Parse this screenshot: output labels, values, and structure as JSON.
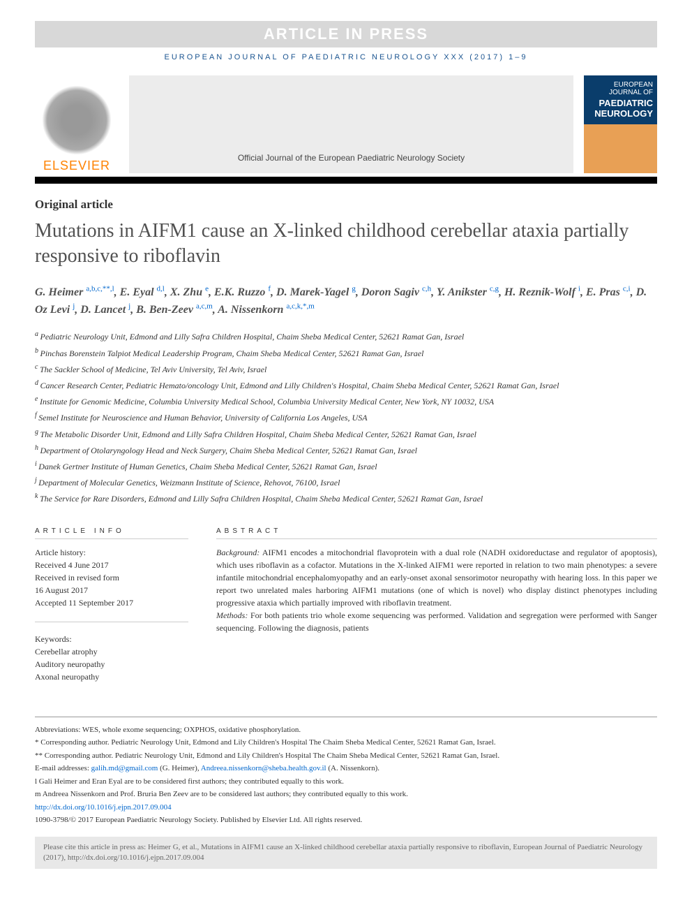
{
  "banner": "ARTICLE IN PRESS",
  "journal_header": "EUROPEAN JOURNAL OF PAEDIATRIC NEUROLOGY XXX (2017) 1–9",
  "publisher": "ELSEVIER",
  "society": "Official Journal of the European Paediatric Neurology Society",
  "cover_sub": "EUROPEAN JOURNAL OF",
  "cover_title1": "PAEDIATRIC",
  "cover_title2": "NEUROLOGY",
  "article_type": "Original article",
  "title": "Mutations in AIFM1 cause an X-linked childhood cerebellar ataxia partially responsive to riboflavin",
  "authors": [
    {
      "name": "G. Heimer",
      "affs": "a,b,c,**,l"
    },
    {
      "name": "E. Eyal",
      "affs": "d,l"
    },
    {
      "name": "X. Zhu",
      "affs": "e"
    },
    {
      "name": "E.K. Ruzzo",
      "affs": "f"
    },
    {
      "name": "D. Marek-Yagel",
      "affs": "g"
    },
    {
      "name": "Doron Sagiv",
      "affs": "c,h"
    },
    {
      "name": "Y. Anikster",
      "affs": "c,g"
    },
    {
      "name": "H. Reznik-Wolf",
      "affs": "i"
    },
    {
      "name": "E. Pras",
      "affs": "c,i"
    },
    {
      "name": "D. Oz Levi",
      "affs": "j"
    },
    {
      "name": "D. Lancet",
      "affs": "j"
    },
    {
      "name": "B. Ben-Zeev",
      "affs": "a,c,m"
    },
    {
      "name": "A. Nissenkorn",
      "affs": "a,c,k,*,m"
    }
  ],
  "affiliations": [
    {
      "sup": "a",
      "text": "Pediatric Neurology Unit, Edmond and Lilly Safra Children Hospital, Chaim Sheba Medical Center, 52621 Ramat Gan, Israel"
    },
    {
      "sup": "b",
      "text": "Pinchas Borenstein Talpiot Medical Leadership Program, Chaim Sheba Medical Center, 52621 Ramat Gan, Israel"
    },
    {
      "sup": "c",
      "text": "The Sackler School of Medicine, Tel Aviv University, Tel Aviv, Israel"
    },
    {
      "sup": "d",
      "text": "Cancer Research Center, Pediatric Hemato/oncology Unit, Edmond and Lilly Children's Hospital, Chaim Sheba Medical Center, 52621 Ramat Gan, Israel"
    },
    {
      "sup": "e",
      "text": "Institute for Genomic Medicine, Columbia University Medical School, Columbia University Medical Center, New York, NY 10032, USA"
    },
    {
      "sup": "f",
      "text": "Semel Institute for Neuroscience and Human Behavior, University of California Los Angeles, USA"
    },
    {
      "sup": "g",
      "text": "The Metabolic Disorder Unit, Edmond and Lilly Safra Children Hospital, Chaim Sheba Medical Center, 52621 Ramat Gan, Israel"
    },
    {
      "sup": "h",
      "text": "Department of Otolaryngology Head and Neck Surgery, Chaim Sheba Medical Center, 52621 Ramat Gan, Israel"
    },
    {
      "sup": "i",
      "text": "Danek Gertner Institute of Human Genetics, Chaim Sheba Medical Center, 52621 Ramat Gan, Israel"
    },
    {
      "sup": "j",
      "text": "Department of Molecular Genetics, Weizmann Institute of Science, Rehovot, 76100, Israel"
    },
    {
      "sup": "k",
      "text": "The Service for Rare Disorders, Edmond and Lilly Safra Children Hospital, Chaim Sheba Medical Center, 52621 Ramat Gan, Israel"
    }
  ],
  "info_heading": "ARTICLE INFO",
  "history_label": "Article history:",
  "history": [
    "Received 4 June 2017",
    "Received in revised form",
    "16 August 2017",
    "Accepted 11 September 2017"
  ],
  "keywords_label": "Keywords:",
  "keywords": [
    "Cerebellar atrophy",
    "Auditory neuropathy",
    "Axonal neuropathy"
  ],
  "abstract_heading": "ABSTRACT",
  "abstract_bg_label": "Background:",
  "abstract_bg": "AIFM1 encodes a mitochondrial flavoprotein with a dual role (NADH oxidoreductase and regulator of apoptosis), which uses riboflavin as a cofactor. Mutations in the X-linked AIFM1 were reported in relation to two main phenotypes: a severe infantile mitochondrial encephalomyopathy and an early-onset axonal sensorimotor neuropathy with hearing loss. In this paper we report two unrelated males harboring AIFM1 mutations (one of which is novel) who display distinct phenotypes including progressive ataxia which partially improved with riboflavin treatment.",
  "abstract_methods_label": "Methods:",
  "abstract_methods": "For both patients trio whole exome sequencing was performed. Validation and segregation were performed with Sanger sequencing. Following the diagnosis, patients",
  "abbreviations": "Abbreviations: WES, whole exome sequencing; OXPHOS, oxidative phosphorylation.",
  "corr1": "* Corresponding author. Pediatric Neurology Unit, Edmond and Lily Children's Hospital The Chaim Sheba Medical Center, 52621 Ramat Gan, Israel.",
  "corr2": "** Corresponding author. Pediatric Neurology Unit, Edmond and Lily Children's Hospital The Chaim Sheba Medical Center, 52621 Ramat Gan, Israel.",
  "email_label": "E-mail addresses:",
  "email1": "galih.md@gmail.com",
  "email1_name": "(G. Heimer),",
  "email2": "Andreea.nissenkorn@sheba.health.gov.il",
  "email2_name": "(A. Nissenkorn).",
  "note_l": "l Gali Heimer and Eran Eyal are to be considered first authors; they contributed equally to this work.",
  "note_m": "m Andreea Nissenkorn and Prof. Bruria Ben Zeev are to be considered last authors; they contributed equally to this work.",
  "doi": "http://dx.doi.org/10.1016/j.ejpn.2017.09.004",
  "copyright": "1090-3798/© 2017 European Paediatric Neurology Society. Published by Elsevier Ltd. All rights reserved.",
  "cite": "Please cite this article in press as: Heimer G, et al., Mutations in AIFM1 cause an X-linked childhood cerebellar ataxia partially responsive to riboflavin, European Journal of Paediatric Neurology (2017), http://dx.doi.org/10.1016/j.ejpn.2017.09.004"
}
